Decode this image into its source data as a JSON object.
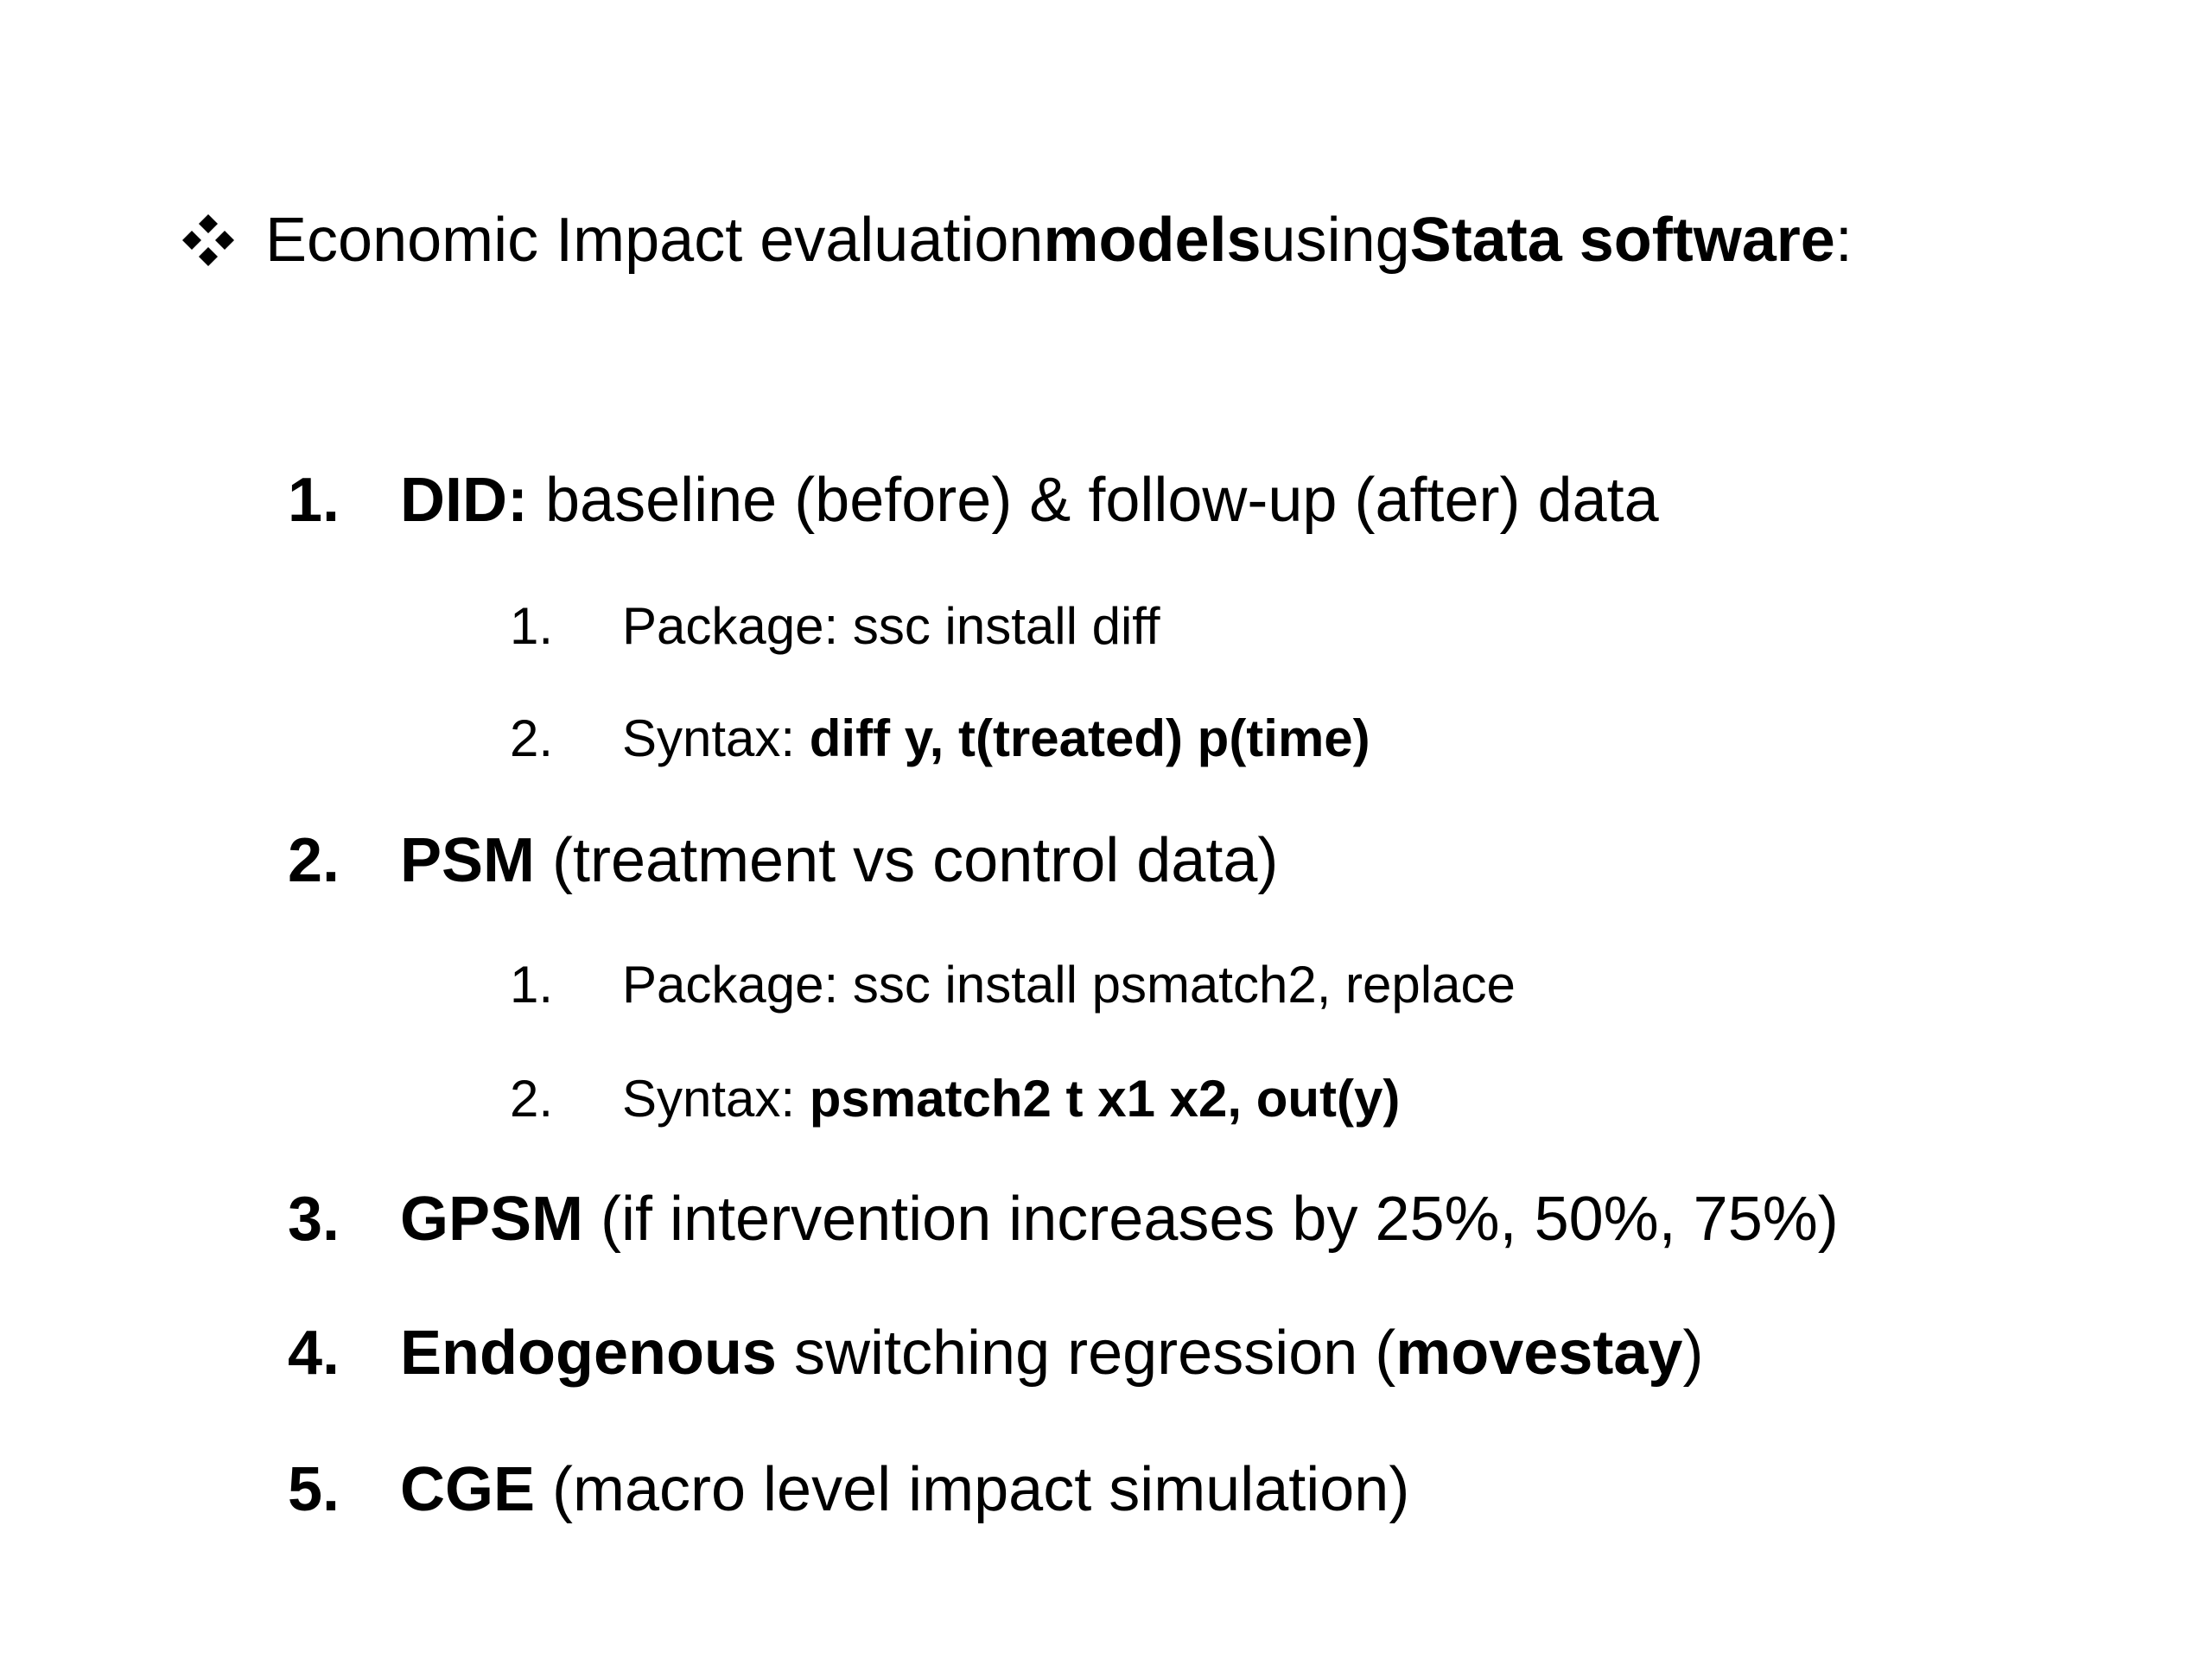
{
  "heading": {
    "parts": [
      {
        "text": "Economic Impact evaluation ",
        "bold": false
      },
      {
        "text": "models",
        "bold": true
      },
      {
        "text": " using ",
        "bold": false
      },
      {
        "text": "Stata software",
        "bold": true
      },
      {
        "text": ":",
        "bold": false
      }
    ],
    "bullet_icon": "diamond-four-icon"
  },
  "items": [
    {
      "number": "1.",
      "title": "DID:",
      "rest": " baseline (before) & follow-up (after) data",
      "subitems": [
        {
          "number": "1.",
          "prefix": "Package: ",
          "text": "ssc install diff",
          "bold": false
        },
        {
          "number": "2.",
          "prefix": "Syntax: ",
          "text": "diff y, t(treated) p(time)",
          "bold": true
        }
      ]
    },
    {
      "number": "2.",
      "title": "PSM",
      "rest": " (treatment vs control data)",
      "subitems": [
        {
          "number": "1.",
          "prefix": "Package: ",
          "text": "ssc install psmatch2, replace",
          "bold": false
        },
        {
          "number": "2.",
          "prefix": "Syntax: ",
          "text": "psmatch2 t x1 x2, out(y)",
          "bold": true
        }
      ]
    },
    {
      "number": "3.",
      "title": "GPSM",
      "rest": " (if intervention increases by 25%, 50%, 75%)"
    },
    {
      "number": "4.",
      "title": "Endogenous",
      "rest_parts": [
        {
          "text": " switching regression (",
          "bold": false
        },
        {
          "text": "movestay",
          "bold": true
        },
        {
          "text": ")",
          "bold": false
        }
      ]
    },
    {
      "number": "5.",
      "title": "CGE",
      "rest": " (macro level impact simulation)"
    }
  ]
}
